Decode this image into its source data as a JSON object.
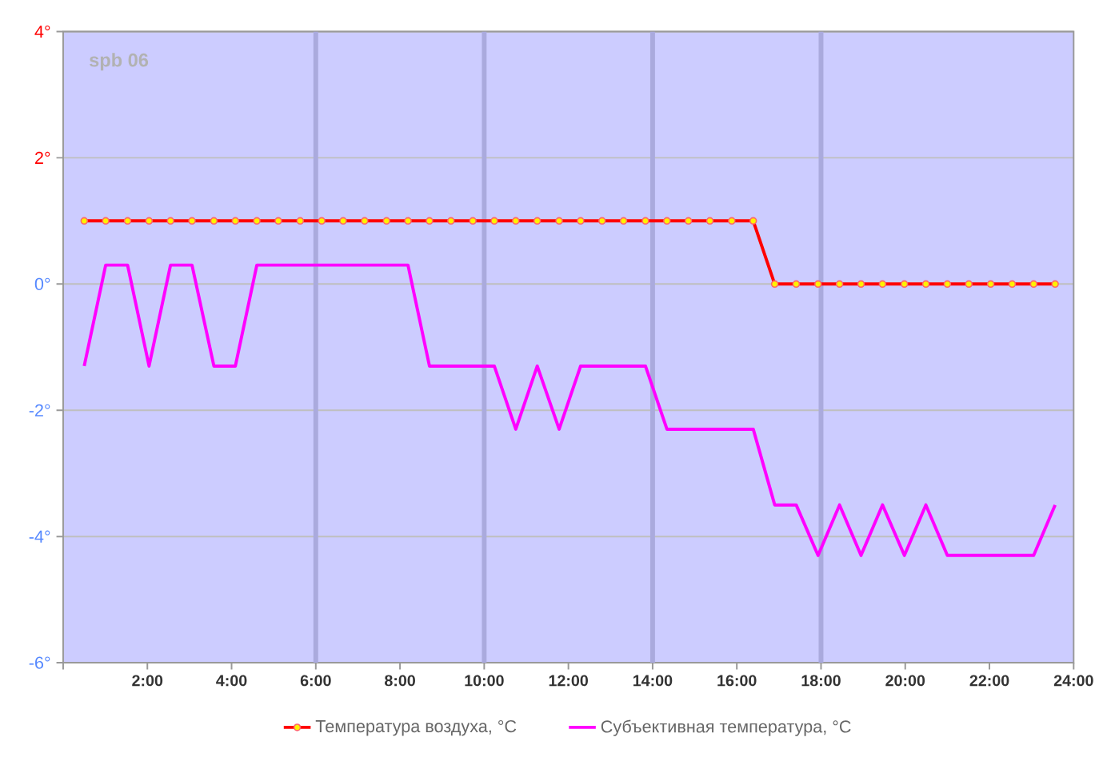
{
  "chart_data": {
    "type": "line",
    "annotations": [
      "spb 06"
    ],
    "x": [
      0.5,
      1.01,
      1.53,
      2.04,
      2.55,
      3.06,
      3.58,
      4.09,
      4.6,
      5.11,
      5.63,
      6.14,
      6.65,
      7.16,
      7.68,
      8.19,
      8.7,
      9.21,
      9.73,
      10.24,
      10.75,
      11.26,
      11.78,
      12.29,
      12.8,
      13.31,
      13.83,
      14.34,
      14.85,
      15.36,
      15.88,
      16.39,
      16.9,
      17.41,
      17.93,
      18.44,
      18.95,
      19.46,
      19.98,
      20.49,
      21.0,
      21.51,
      22.03,
      22.54,
      23.05,
      23.56
    ],
    "series": [
      {
        "name": "Температура воздуха, °C",
        "color": "#ff0000",
        "marker": "circle",
        "values": [
          1,
          1,
          1,
          1,
          1,
          1,
          1,
          1,
          1,
          1,
          1,
          1,
          1,
          1,
          1,
          1,
          1,
          1,
          1,
          1,
          1,
          1,
          1,
          1,
          1,
          1,
          1,
          1,
          1,
          1,
          1,
          1,
          0,
          0,
          0,
          0,
          0,
          0,
          0,
          0,
          0,
          0,
          0,
          0,
          0,
          0
        ]
      },
      {
        "name": "Субъективная температура, °C",
        "color": "#ff00ff",
        "marker": "none",
        "values": [
          -1.3,
          0.3,
          0.3,
          -1.3,
          0.3,
          0.3,
          -1.3,
          -1.3,
          0.3,
          0.3,
          0.3,
          0.3,
          0.3,
          0.3,
          0.3,
          0.3,
          -1.3,
          -1.3,
          -1.3,
          -1.3,
          -2.3,
          -1.3,
          -2.3,
          -1.3,
          -1.3,
          -1.3,
          -1.3,
          -2.3,
          -2.3,
          -2.3,
          -2.3,
          -2.3,
          -3.5,
          -3.5,
          -4.3,
          -3.5,
          -4.3,
          -3.5,
          -4.3,
          -3.5,
          -4.3,
          -4.3,
          -4.3,
          -4.3,
          -4.3,
          -3.5
        ]
      }
    ],
    "xlim": [
      0,
      24
    ],
    "xticks": [
      {
        "value": 0,
        "label": null
      },
      {
        "value": 2,
        "label": "2:00"
      },
      {
        "value": 4,
        "label": "4:00"
      },
      {
        "value": 6,
        "label": "6:00"
      },
      {
        "value": 8,
        "label": "8:00"
      },
      {
        "value": 10,
        "label": "10:00"
      },
      {
        "value": 12,
        "label": "12:00"
      },
      {
        "value": 14,
        "label": "14:00"
      },
      {
        "value": 16,
        "label": "16:00"
      },
      {
        "value": 18,
        "label": "18:00"
      },
      {
        "value": 20,
        "label": "20:00"
      },
      {
        "value": 22,
        "label": "22:00"
      },
      {
        "value": 24,
        "label": "24:00"
      }
    ],
    "ylim": [
      -6,
      4
    ],
    "yticks": [
      {
        "value": -6,
        "label": "-6°"
      },
      {
        "value": -4,
        "label": "-4°"
      },
      {
        "value": -2,
        "label": "-2°"
      },
      {
        "value": 0,
        "label": "0°"
      },
      {
        "value": 2,
        "label": "2°"
      },
      {
        "value": 4,
        "label": "4°"
      }
    ],
    "ref_lines": [
      {
        "axis": "x",
        "value": 6,
        "color": "#aaaadd"
      },
      {
        "axis": "x",
        "value": 10,
        "color": "#aaaadd"
      },
      {
        "axis": "x",
        "value": 14,
        "color": "#aaaadd"
      },
      {
        "axis": "x",
        "value": 18,
        "color": "#aaaadd"
      }
    ],
    "grid": "y",
    "legend": "bottom",
    "line_style": "solid"
  }
}
